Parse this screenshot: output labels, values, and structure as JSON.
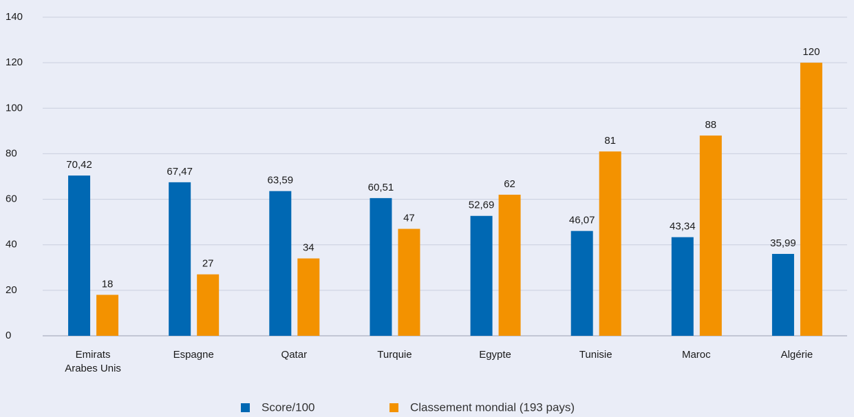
{
  "chart_data": {
    "type": "bar",
    "categories": [
      "Emirats Arabes Unis",
      "Espagne",
      "Qatar",
      "Turquie",
      "Egypte",
      "Tunisie",
      "Maroc",
      "Algérie"
    ],
    "series": [
      {
        "name": "Score/100",
        "color": "#0068b3",
        "values": [
          70.42,
          67.47,
          63.59,
          60.51,
          52.69,
          46.07,
          43.34,
          35.99
        ],
        "value_labels": [
          "70,42",
          "67,47",
          "63,59",
          "60,51",
          "52,69",
          "46,07",
          "43,34",
          "35,99"
        ]
      },
      {
        "name": "Classement mondial (193 pays)",
        "color": "#f39200",
        "values": [
          18,
          27,
          34,
          47,
          62,
          81,
          88,
          120
        ]
      }
    ],
    "ylim": [
      0,
      140
    ],
    "yticks": [
      0,
      20,
      40,
      60,
      80,
      100,
      120,
      140
    ],
    "grid": true
  }
}
